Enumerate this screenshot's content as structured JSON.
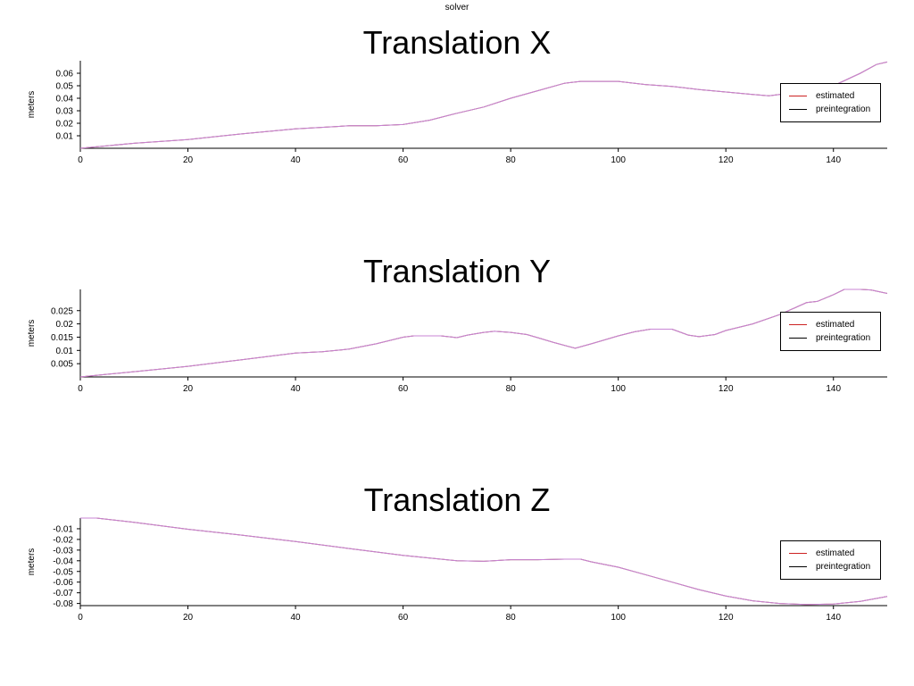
{
  "window": {
    "title": "solver"
  },
  "chart_data": [
    {
      "type": "line",
      "title": "Translation X",
      "ylabel": "meters",
      "xlim": [
        0,
        150
      ],
      "ylim": [
        0,
        0.07
      ],
      "xticks": [
        "0",
        "20",
        "40",
        "60",
        "80",
        "100",
        "120",
        "140"
      ],
      "yticks": [
        "0.01",
        "0.02",
        "0.03",
        "0.04",
        "0.05",
        "0.06"
      ],
      "legend_position": "right",
      "grid": false,
      "series": [
        {
          "name": "estimated",
          "color": "#cc2222",
          "x": [
            0,
            10,
            20,
            30,
            40,
            50,
            55,
            60,
            65,
            70,
            75,
            80,
            85,
            90,
            93,
            95,
            100,
            105,
            110,
            115,
            120,
            125,
            128,
            130,
            135,
            140,
            145,
            148,
            150
          ],
          "y": [
            0.0,
            0.004,
            0.007,
            0.0115,
            0.0155,
            0.018,
            0.018,
            0.019,
            0.0225,
            0.028,
            0.033,
            0.04,
            0.046,
            0.052,
            0.0535,
            0.0535,
            0.0535,
            0.051,
            0.0495,
            0.047,
            0.045,
            0.043,
            0.042,
            0.043,
            0.044,
            0.05,
            0.06,
            0.067,
            0.069
          ]
        },
        {
          "name": "preintegration",
          "color": "#000000",
          "x": [
            0,
            10,
            20,
            30,
            40,
            50,
            55,
            60,
            65,
            70,
            75,
            80,
            85,
            90,
            93,
            95,
            100,
            105,
            110,
            115,
            120,
            125,
            128,
            130,
            135,
            140,
            145,
            148,
            150
          ],
          "y": [
            0.0,
            0.004,
            0.007,
            0.0115,
            0.0155,
            0.018,
            0.018,
            0.019,
            0.0225,
            0.028,
            0.033,
            0.04,
            0.046,
            0.052,
            0.0535,
            0.0535,
            0.0535,
            0.051,
            0.0495,
            0.047,
            0.045,
            0.043,
            0.042,
            0.043,
            0.044,
            0.05,
            0.06,
            0.067,
            0.069
          ]
        }
      ]
    },
    {
      "type": "line",
      "title": "Translation Y",
      "ylabel": "meters",
      "xlim": [
        0,
        150
      ],
      "ylim": [
        0,
        0.033
      ],
      "xticks": [
        "0",
        "20",
        "40",
        "60",
        "80",
        "100",
        "120",
        "140"
      ],
      "yticks": [
        "0.005",
        "0.01",
        "0.015",
        "0.02",
        "0.025"
      ],
      "legend_position": "right",
      "grid": false,
      "series": [
        {
          "name": "estimated",
          "color": "#cc2222",
          "x": [
            0,
            5,
            10,
            20,
            30,
            40,
            45,
            50,
            55,
            60,
            62,
            65,
            67,
            70,
            72,
            75,
            77,
            80,
            83,
            85,
            88,
            92,
            95,
            100,
            103,
            106,
            110,
            113,
            115,
            118,
            120,
            125,
            130,
            135,
            137,
            140,
            142,
            145,
            147,
            150
          ],
          "y": [
            0.0,
            0.001,
            0.002,
            0.004,
            0.0065,
            0.009,
            0.0095,
            0.0105,
            0.0125,
            0.015,
            0.0155,
            0.0155,
            0.0155,
            0.0148,
            0.0158,
            0.0168,
            0.0172,
            0.0168,
            0.016,
            0.0148,
            0.013,
            0.0108,
            0.0125,
            0.0155,
            0.017,
            0.018,
            0.018,
            0.0158,
            0.0152,
            0.016,
            0.0175,
            0.02,
            0.0235,
            0.028,
            0.0285,
            0.031,
            0.033,
            0.033,
            0.0328,
            0.0315
          ]
        },
        {
          "name": "preintegration",
          "color": "#000000",
          "x": [
            0,
            5,
            10,
            20,
            30,
            40,
            45,
            50,
            55,
            60,
            62,
            65,
            67,
            70,
            72,
            75,
            77,
            80,
            83,
            85,
            88,
            92,
            95,
            100,
            103,
            106,
            110,
            113,
            115,
            118,
            120,
            125,
            130,
            135,
            137,
            140,
            142,
            145,
            147,
            150
          ],
          "y": [
            0.0,
            0.001,
            0.002,
            0.004,
            0.0065,
            0.009,
            0.0095,
            0.0105,
            0.0125,
            0.015,
            0.0155,
            0.0155,
            0.0155,
            0.0148,
            0.0158,
            0.0168,
            0.0172,
            0.0168,
            0.016,
            0.0148,
            0.013,
            0.0108,
            0.0125,
            0.0155,
            0.017,
            0.018,
            0.018,
            0.0158,
            0.0152,
            0.016,
            0.0175,
            0.02,
            0.0235,
            0.028,
            0.0285,
            0.031,
            0.033,
            0.033,
            0.0328,
            0.0315
          ]
        }
      ]
    },
    {
      "type": "line",
      "title": "Translation Z",
      "ylabel": "meters",
      "xlim": [
        0,
        150
      ],
      "ylim": [
        -0.082,
        0.0
      ],
      "xticks": [
        "0",
        "20",
        "40",
        "60",
        "80",
        "100",
        "120",
        "140"
      ],
      "yticks": [
        "-0.01",
        "-0.02",
        "-0.03",
        "-0.04",
        "-0.05",
        "-0.06",
        "-0.07",
        "-0.08"
      ],
      "legend_position": "right",
      "grid": false,
      "series": [
        {
          "name": "estimated",
          "color": "#cc2222",
          "x": [
            0,
            3,
            10,
            20,
            30,
            40,
            50,
            60,
            70,
            75,
            80,
            85,
            90,
            93,
            95,
            100,
            105,
            110,
            115,
            120,
            125,
            130,
            135,
            140,
            145,
            150
          ],
          "y": [
            0.0,
            0.0,
            -0.004,
            -0.0105,
            -0.016,
            -0.022,
            -0.0285,
            -0.035,
            -0.04,
            -0.0405,
            -0.039,
            -0.039,
            -0.0385,
            -0.0385,
            -0.041,
            -0.046,
            -0.053,
            -0.06,
            -0.067,
            -0.073,
            -0.0775,
            -0.08,
            -0.081,
            -0.0805,
            -0.078,
            -0.0735
          ]
        },
        {
          "name": "preintegration",
          "color": "#000000",
          "x": [
            0,
            3,
            10,
            20,
            30,
            40,
            50,
            60,
            70,
            75,
            80,
            85,
            90,
            93,
            95,
            100,
            105,
            110,
            115,
            120,
            125,
            130,
            135,
            140,
            145,
            150
          ],
          "y": [
            0.0,
            0.0,
            -0.004,
            -0.0105,
            -0.016,
            -0.022,
            -0.0285,
            -0.035,
            -0.04,
            -0.0405,
            -0.039,
            -0.039,
            -0.0385,
            -0.0385,
            -0.041,
            -0.046,
            -0.053,
            -0.06,
            -0.067,
            -0.073,
            -0.0775,
            -0.08,
            -0.081,
            -0.0805,
            -0.078,
            -0.0735
          ]
        }
      ]
    }
  ]
}
